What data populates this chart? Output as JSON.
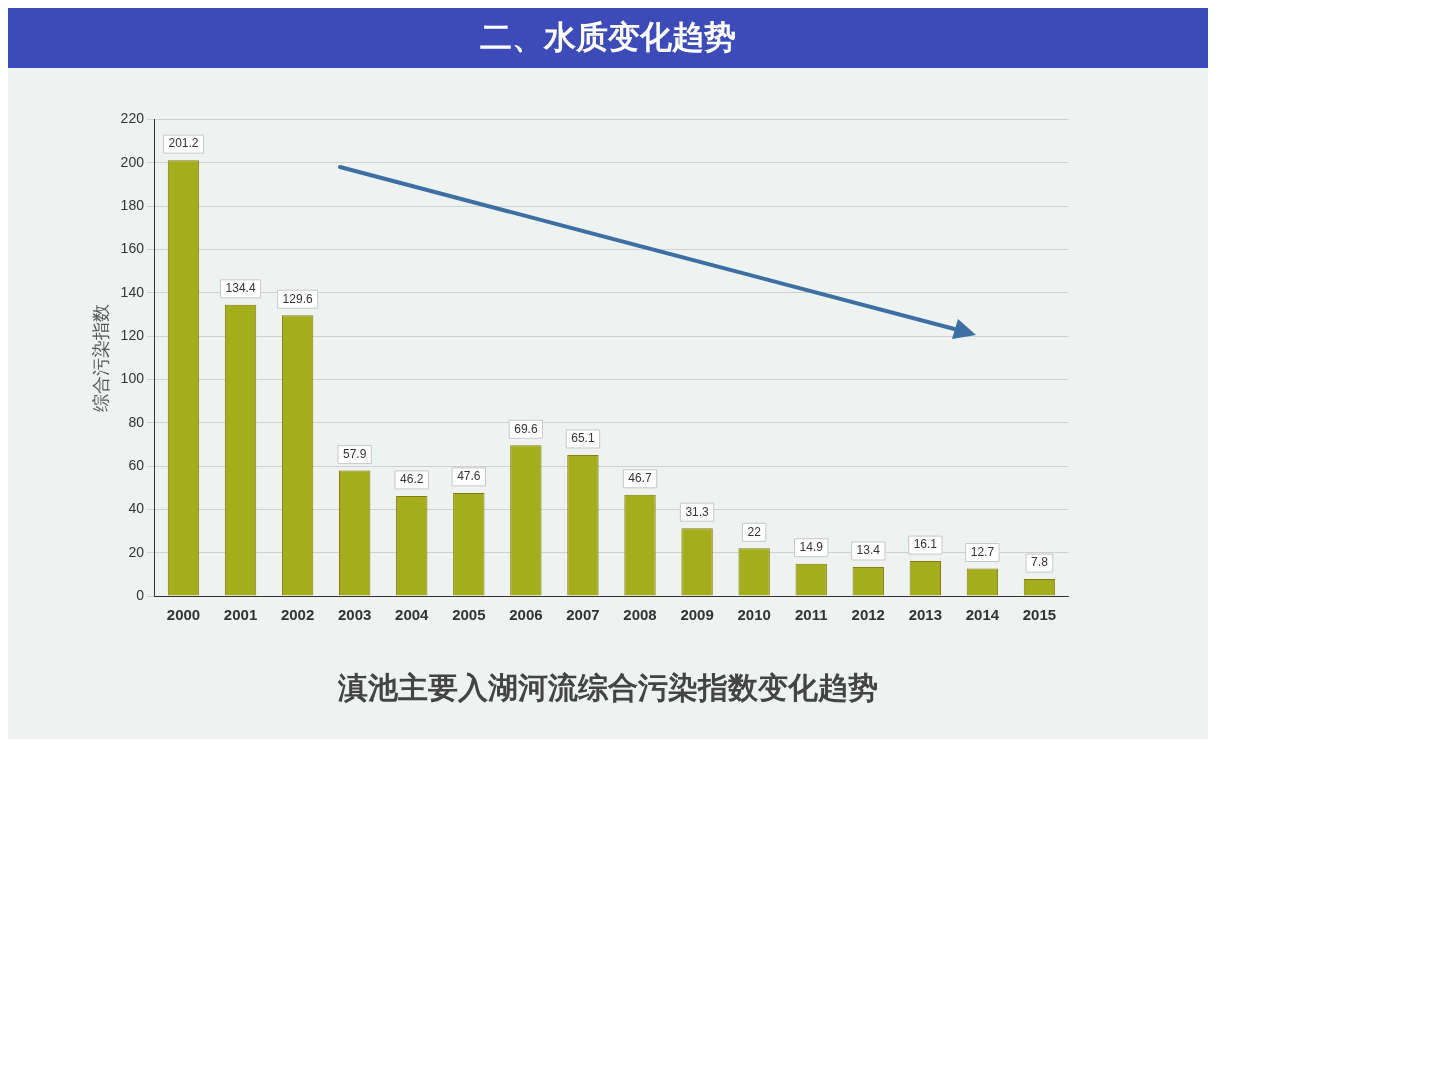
{
  "chart_data": {
    "type": "bar",
    "title": "二、水质变化趋势",
    "subtitle": "滇池主要入湖河流综合污染指数变化趋势",
    "ylabel": "综合污染指数",
    "categories": [
      "2000",
      "2001",
      "2002",
      "2003",
      "2004",
      "2005",
      "2006",
      "2007",
      "2008",
      "2009",
      "2010",
      "2011",
      "2012",
      "2013",
      "2014",
      "2015"
    ],
    "values": [
      201.2,
      134.4,
      129.6,
      57.9,
      46.2,
      47.6,
      69.6,
      65.1,
      46.7,
      31.3,
      22,
      14.9,
      13.4,
      16.1,
      12.7,
      7.8
    ],
    "color": "#a3ae1c",
    "ylim": [
      0,
      220
    ],
    "yticks": [
      0,
      20,
      40,
      60,
      80,
      100,
      120,
      140,
      160,
      180,
      200,
      220
    ],
    "grid": "y",
    "legend": false,
    "data_labels": true
  }
}
